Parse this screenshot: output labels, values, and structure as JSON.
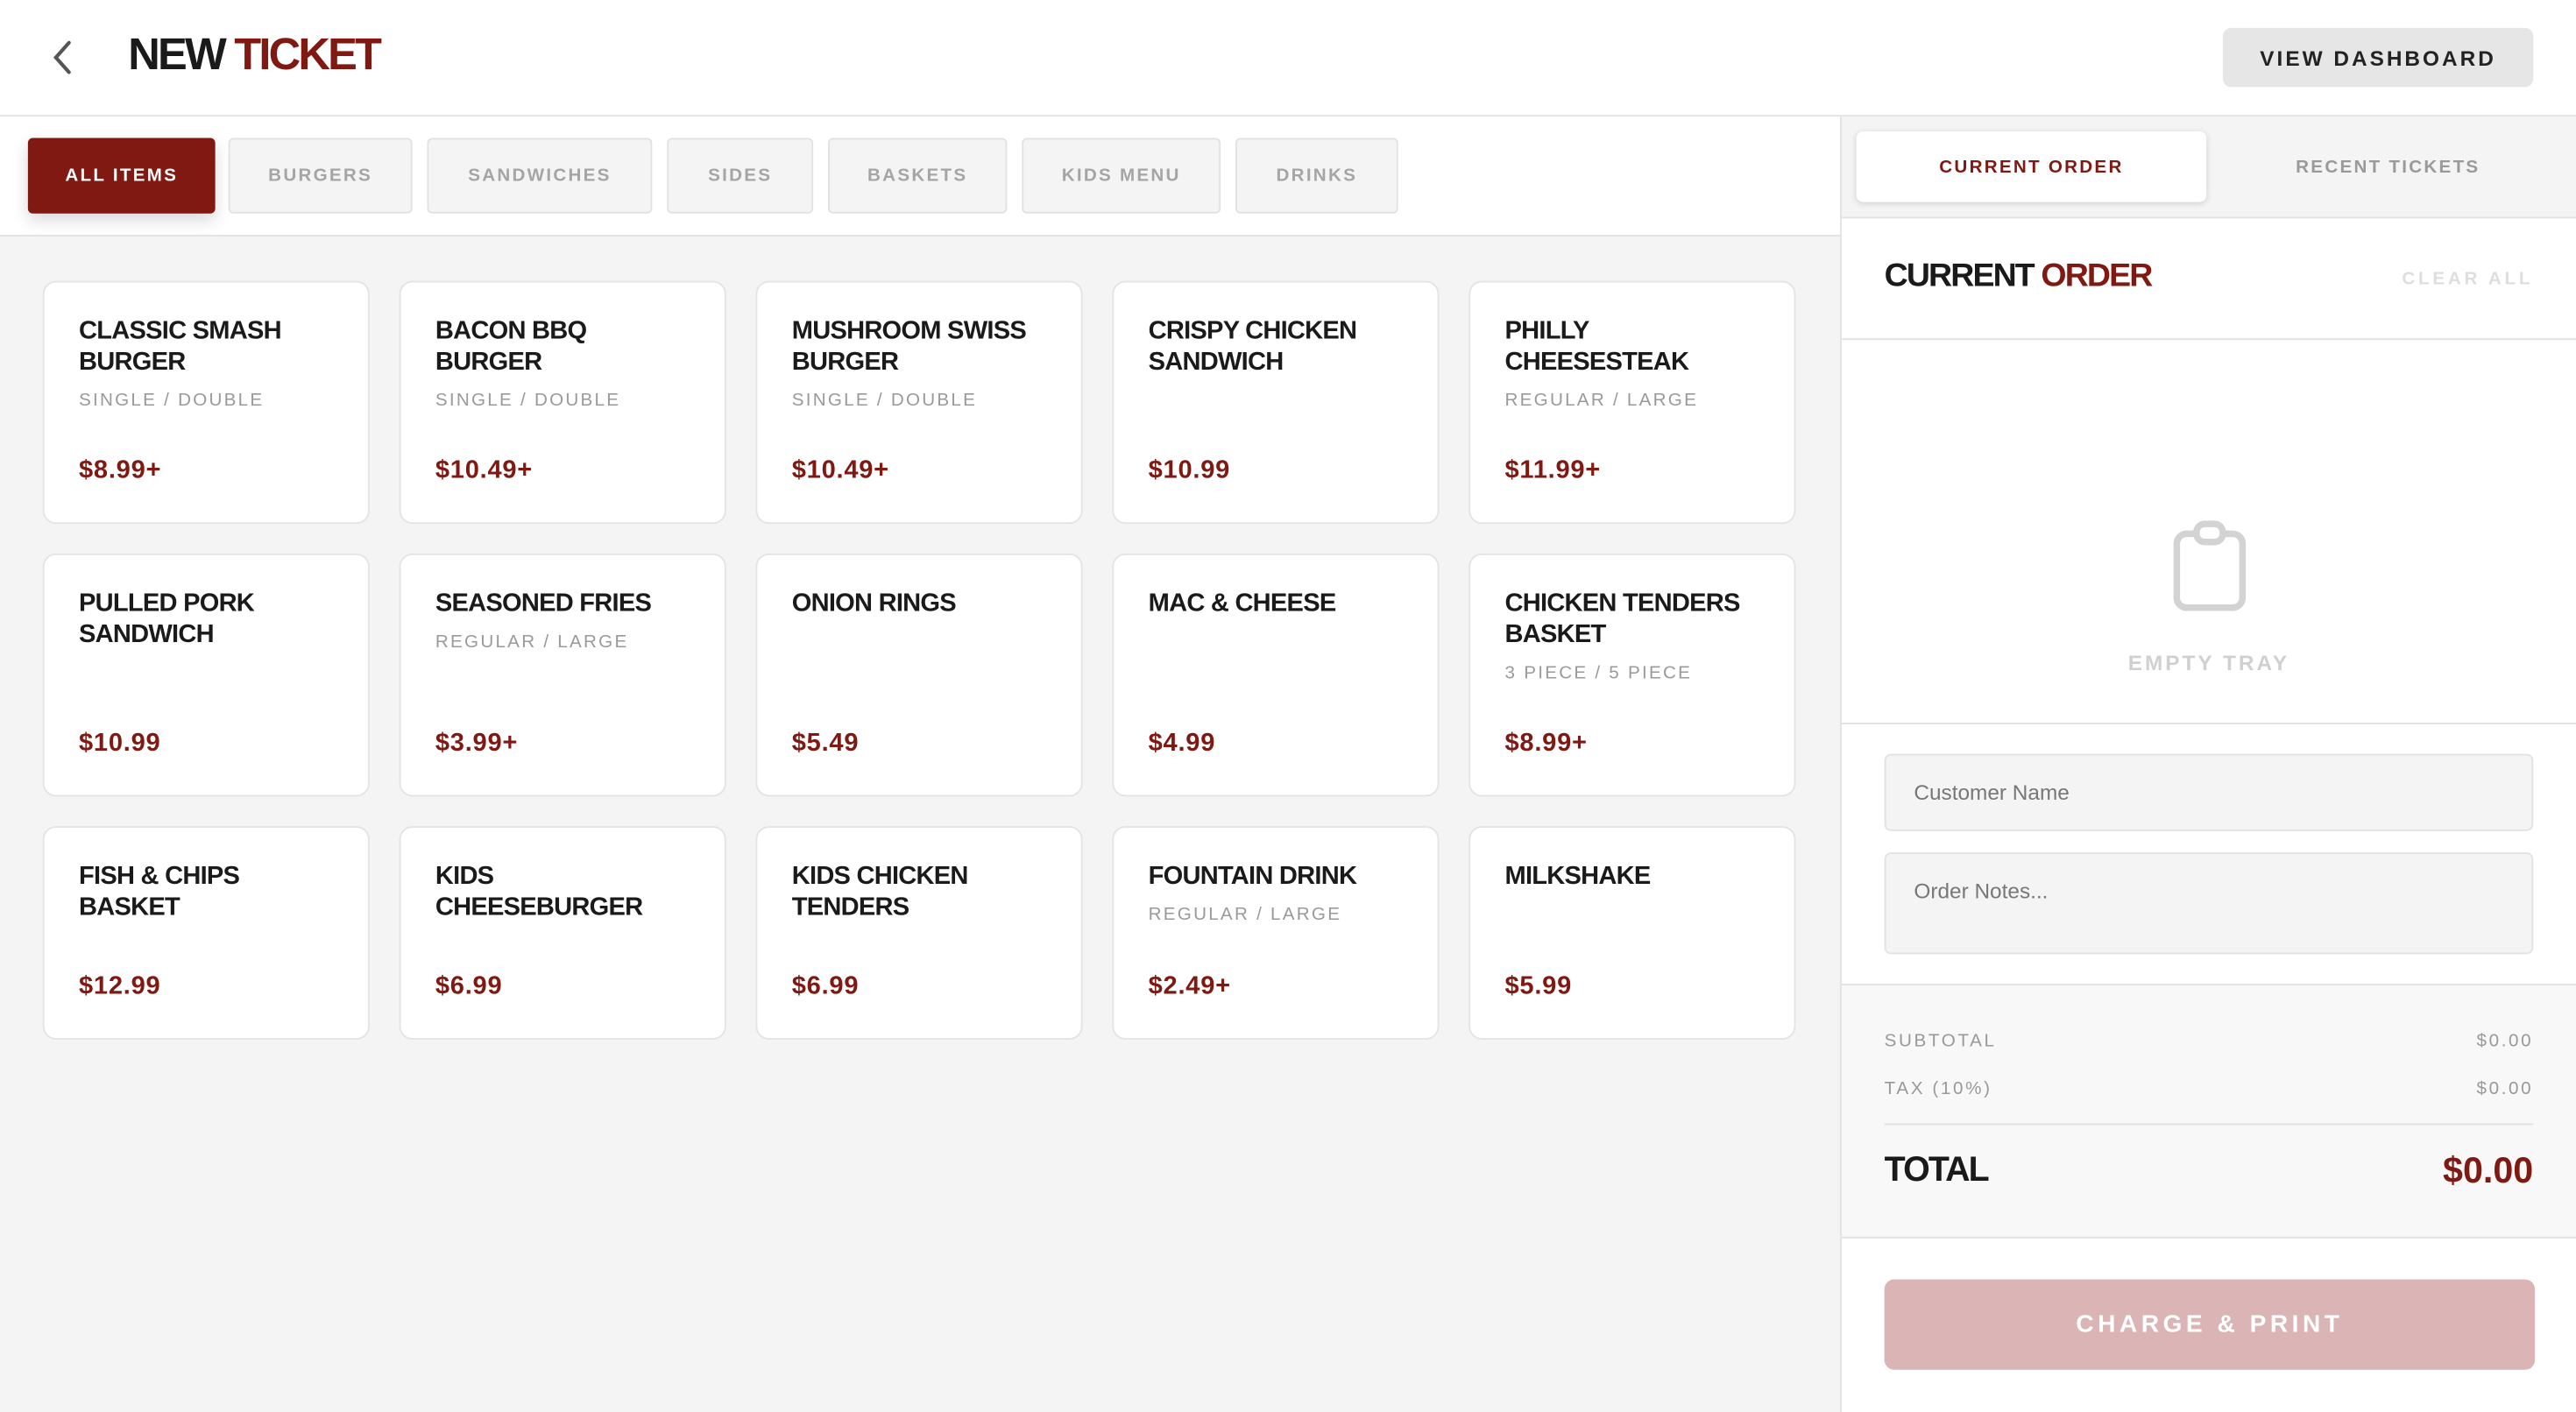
{
  "header": {
    "title_a": "NEW",
    "title_b": "TICKET",
    "view_dashboard": "VIEW DASHBOARD"
  },
  "categories": [
    "ALL ITEMS",
    "BURGERS",
    "SANDWICHES",
    "SIDES",
    "BASKETS",
    "KIDS MENU",
    "DRINKS"
  ],
  "items": [
    {
      "name": "Classic Smash Burger",
      "variants": "SINGLE / DOUBLE",
      "price": "$8.99+"
    },
    {
      "name": "Bacon BBQ Burger",
      "variants": "SINGLE / DOUBLE",
      "price": "$10.49+"
    },
    {
      "name": "Mushroom Swiss Burger",
      "variants": "SINGLE / DOUBLE",
      "price": "$10.49+"
    },
    {
      "name": "Crispy Chicken Sandwich",
      "variants": "",
      "price": "$10.99"
    },
    {
      "name": "Philly Cheesesteak",
      "variants": "REGULAR / LARGE",
      "price": "$11.99+"
    },
    {
      "name": "Pulled Pork Sandwich",
      "variants": "",
      "price": "$10.99"
    },
    {
      "name": "Seasoned Fries",
      "variants": "REGULAR / LARGE",
      "price": "$3.99+"
    },
    {
      "name": "Onion Rings",
      "variants": "",
      "price": "$5.49"
    },
    {
      "name": "Mac & Cheese",
      "variants": "",
      "price": "$4.99"
    },
    {
      "name": "Chicken Tenders Basket",
      "variants": "3 PIECE / 5 PIECE",
      "price": "$8.99+"
    },
    {
      "name": "Fish & Chips Basket",
      "variants": "",
      "price": "$12.99"
    },
    {
      "name": "Kids Cheeseburger",
      "variants": "",
      "price": "$6.99"
    },
    {
      "name": "Kids Chicken Tenders",
      "variants": "",
      "price": "$6.99"
    },
    {
      "name": "Fountain Drink",
      "variants": "REGULAR / LARGE",
      "price": "$2.49+"
    },
    {
      "name": "Milkshake",
      "variants": "",
      "price": "$5.99"
    }
  ],
  "order": {
    "tabs": [
      "CURRENT ORDER",
      "RECENT TICKETS"
    ],
    "title_a": "CURRENT",
    "title_b": "ORDER",
    "clear_all": "CLEAR ALL",
    "empty_label": "EMPTY TRAY",
    "customer_placeholder": "Customer Name",
    "notes_placeholder": "Order Notes...",
    "subtotal_label": "SUBTOTAL",
    "subtotal": "$0.00",
    "tax_label": "TAX (10%)",
    "tax": "$0.00",
    "total_label": "TOTAL",
    "total": "$0.00",
    "charge": "CHARGE & PRINT"
  },
  "colors": {
    "accent": "#7f1912",
    "disabled_button": "#dbb5b5"
  }
}
